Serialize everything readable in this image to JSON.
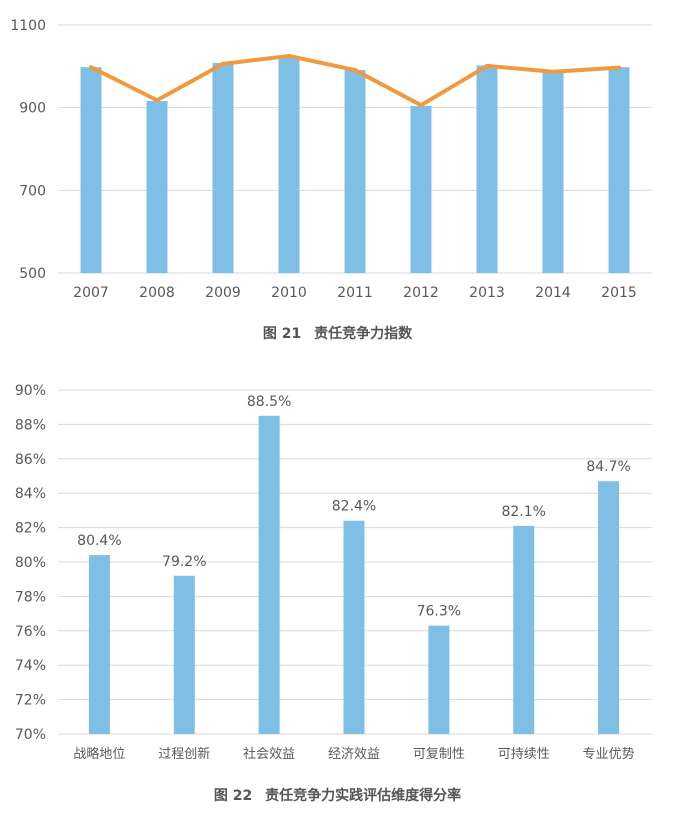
{
  "colors": {
    "bar": "#7fbfe6",
    "line": "#ee9a3e",
    "grid": "#d9d9d9",
    "text": "#595959"
  },
  "charts": [
    {
      "figure_number": "图 21",
      "figure_title": "责任竞争力指数"
    },
    {
      "figure_number": "图 22",
      "figure_title": "责任竞争力实践评估维度得分率"
    }
  ],
  "chart_data": [
    {
      "type": "bar",
      "title": "责任竞争力指数",
      "categories": [
        "2007",
        "2008",
        "2009",
        "2010",
        "2011",
        "2012",
        "2013",
        "2014",
        "2015"
      ],
      "series": [
        {
          "kind": "bar",
          "values": [
            998,
            916,
            1008,
            1022,
            991,
            904,
            1002,
            985,
            998
          ]
        },
        {
          "kind": "line",
          "values": [
            998,
            918,
            1006,
            1025,
            991,
            906,
            1001,
            987,
            997
          ]
        }
      ],
      "ylim": [
        500,
        1100
      ],
      "yticks": [
        "500",
        "700",
        "900",
        "1100"
      ],
      "ytick_values": [
        500,
        700,
        900,
        1100
      ],
      "grid": true,
      "xlabel": "",
      "ylabel": ""
    },
    {
      "type": "bar",
      "title": "责任竞争力实践评估维度得分率",
      "categories": [
        "战略地位",
        "过程创新",
        "社会效益",
        "经济效益",
        "可复制性",
        "可持续性",
        "专业优势"
      ],
      "values": [
        80.4,
        79.2,
        88.5,
        82.4,
        76.3,
        82.1,
        84.7
      ],
      "value_labels": [
        "80.4%",
        "79.2%",
        "88.5%",
        "82.4%",
        "76.3%",
        "82.1%",
        "84.7%"
      ],
      "ylim": [
        70,
        90
      ],
      "yticks": [
        "70%",
        "72%",
        "74%",
        "76%",
        "78%",
        "80%",
        "82%",
        "84%",
        "86%",
        "88%",
        "90%"
      ],
      "ytick_values": [
        70,
        72,
        74,
        76,
        78,
        80,
        82,
        84,
        86,
        88,
        90
      ],
      "grid": true,
      "xlabel": "",
      "ylabel": ""
    }
  ]
}
